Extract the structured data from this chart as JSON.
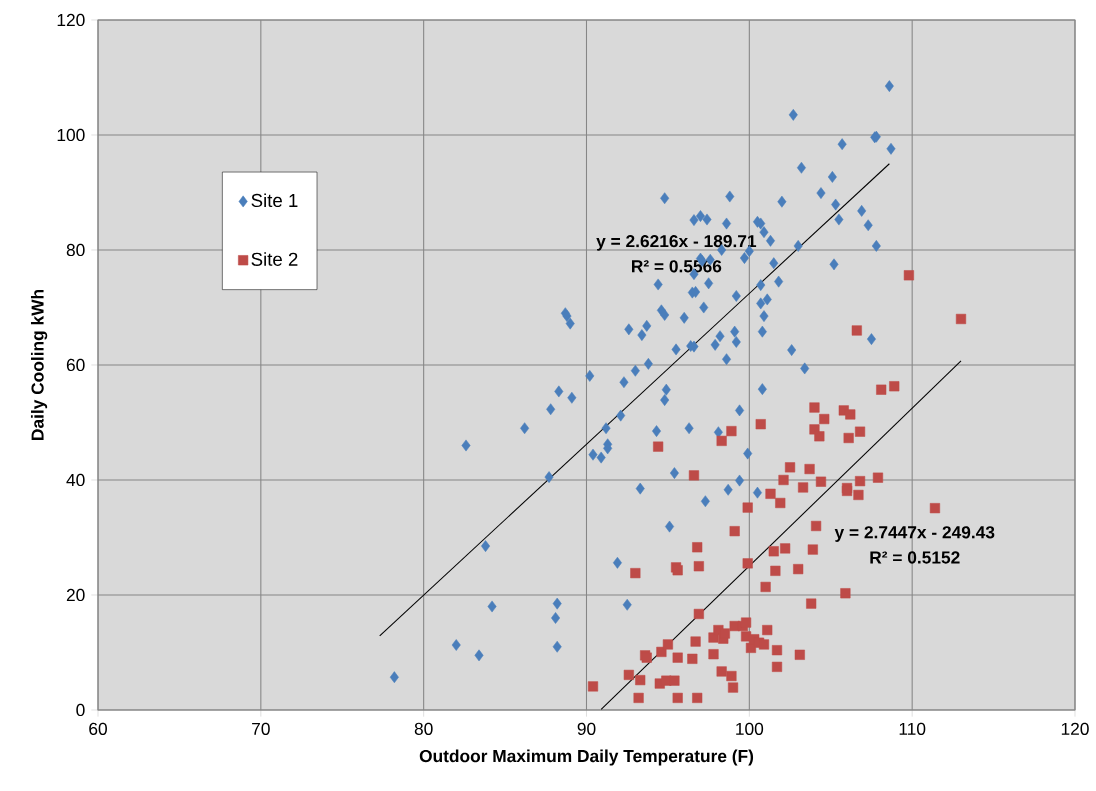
{
  "chart_data": {
    "type": "scatter",
    "xlabel": "Outdoor Maximum Daily Temperature (F)",
    "ylabel": "Daily Cooling kWh",
    "xlim": [
      60,
      120
    ],
    "ylim": [
      0,
      120
    ],
    "xticks": [
      60,
      70,
      80,
      90,
      100,
      110,
      120
    ],
    "yticks": [
      0,
      20,
      40,
      60,
      80,
      100,
      120
    ],
    "grid": true,
    "legend": "left",
    "series": [
      {
        "name": "Site 1",
        "color": "#4a7ebb",
        "marker": "diamond",
        "x": [
          78.2,
          82.0,
          83.4,
          82.6,
          83.8,
          84.2,
          86.2,
          87.7,
          87.8,
          88.3,
          88.2,
          88.1,
          88.2,
          88.7,
          88.8,
          89.0,
          89.1,
          90.2,
          90.4,
          90.9,
          91.3,
          91.3,
          91.2,
          91.9,
          92.1,
          92.3,
          92.5,
          92.6,
          93.0,
          93.3,
          93.4,
          93.7,
          93.8,
          94.3,
          94.4,
          94.6,
          94.8,
          94.8,
          94.8,
          94.9,
          95.1,
          95.4,
          95.5,
          96.0,
          96.3,
          96.4,
          96.5,
          96.6,
          96.6,
          96.7,
          96.6,
          97.0,
          97.0,
          97.1,
          97.2,
          97.3,
          97.4,
          97.5,
          97.6,
          97.9,
          98.1,
          98.2,
          98.3,
          98.6,
          98.7,
          98.6,
          98.8,
          99.1,
          99.2,
          99.2,
          99.4,
          99.4,
          99.7,
          99.9,
          100.0,
          100.5,
          100.5,
          100.7,
          100.7,
          100.7,
          100.8,
          100.9,
          100.8,
          100.9,
          101.1,
          101.3,
          101.5,
          101.8,
          102.0,
          102.6,
          102.7,
          103.0,
          103.2,
          103.4,
          104.4,
          105.1,
          105.2,
          105.3,
          105.5,
          105.7,
          106.9,
          107.3,
          107.5,
          107.7,
          107.8,
          107.8,
          108.6,
          108.7
        ],
        "values": [
          5.7,
          11.3,
          9.5,
          46,
          28.5,
          18,
          49,
          40.5,
          52.3,
          55.4,
          18.5,
          16,
          11,
          69,
          68.5,
          67.2,
          54.3,
          58.1,
          44.4,
          43.9,
          46.2,
          45.5,
          49,
          25.6,
          51.2,
          57,
          18.3,
          66.2,
          59,
          38.5,
          65.2,
          66.8,
          60.2,
          48.5,
          74,
          69.5,
          68.7,
          89,
          53.9,
          55.7,
          31.9,
          41.2,
          62.7,
          68.2,
          49,
          63.3,
          72.6,
          63.2,
          75.8,
          72.7,
          85.2,
          78.5,
          85.9,
          78.1,
          70,
          36.3,
          85.3,
          74.2,
          78.3,
          63.5,
          48.3,
          65,
          80,
          61,
          38.3,
          84.6,
          89.3,
          65.8,
          64,
          72,
          52.1,
          39.9,
          78.6,
          44.6,
          79.8,
          37.8,
          84.9,
          73.9,
          70.7,
          84.6,
          55.8,
          68.5,
          65.8,
          83.1,
          71.4,
          81.6,
          77.7,
          74.5,
          88.4,
          62.6,
          103.5,
          80.7,
          94.3,
          59.4,
          89.9,
          92.7,
          77.5,
          87.9,
          85.3,
          98.4,
          86.8,
          84.3,
          64.5,
          99.6,
          99.7,
          80.7,
          108.5,
          97.6
        ]
      },
      {
        "name": "Site 2",
        "color": "#be4b48",
        "marker": "square",
        "x": [
          90.4,
          92.6,
          93.0,
          93.2,
          93.3,
          93.6,
          93.7,
          94.4,
          94.5,
          94.6,
          94.9,
          95.0,
          95.4,
          95.5,
          95.6,
          95.6,
          95.6,
          96.5,
          96.6,
          96.7,
          96.8,
          96.8,
          96.9,
          96.9,
          97.8,
          97.8,
          98.1,
          98.3,
          98.3,
          98.4,
          98.5,
          98.9,
          98.9,
          99.0,
          99.1,
          99.1,
          99.6,
          99.8,
          99.8,
          99.9,
          99.9,
          100.1,
          100.3,
          100.6,
          100.7,
          100.9,
          101.0,
          101.1,
          101.3,
          101.5,
          101.6,
          101.7,
          101.7,
          101.9,
          102.1,
          102.2,
          102.5,
          103.0,
          103.1,
          103.3,
          103.7,
          103.8,
          103.9,
          104.0,
          104.0,
          104.1,
          104.3,
          104.4,
          104.6,
          105.8,
          105.9,
          106.0,
          106.0,
          106.1,
          106.2,
          106.6,
          106.7,
          106.8,
          106.8,
          107.9,
          108.1,
          108.9,
          109.8,
          111.4,
          113.0
        ],
        "values": [
          4.1,
          6.1,
          23.8,
          2.1,
          5.2,
          9.5,
          9.1,
          45.8,
          4.6,
          10.1,
          5.1,
          11.4,
          5.1,
          24.8,
          9.1,
          24.3,
          2.1,
          8.9,
          40.8,
          11.9,
          28.3,
          2.1,
          25,
          16.7,
          12.6,
          9.7,
          13.9,
          6.7,
          46.8,
          12.4,
          13.3,
          5.9,
          48.5,
          3.9,
          31.1,
          14.6,
          14.6,
          15.2,
          12.8,
          35.2,
          25.5,
          10.8,
          12.3,
          11.7,
          49.7,
          11.4,
          21.4,
          13.9,
          37.6,
          27.6,
          24.2,
          10.4,
          7.5,
          36,
          40,
          28.1,
          42.2,
          24.5,
          9.6,
          38.7,
          41.9,
          18.5,
          27.9,
          52.6,
          48.8,
          32,
          47.6,
          39.7,
          50.6,
          52.1,
          20.3,
          38.6,
          38.1,
          47.3,
          51.4,
          66,
          37.4,
          48.4,
          39.8,
          40.4,
          55.7,
          56.3,
          75.6,
          35.1,
          68
        ]
      },
      {
        "type": "line",
        "color": "#000000",
        "marker": "none",
        "line_style": "solid",
        "x": [
          77.3,
          108.6
        ],
        "values": [
          12.9,
          95.0
        ]
      },
      {
        "type": "line",
        "color": "#000000",
        "marker": "none",
        "line_style": "solid",
        "x": [
          90.9,
          113.0
        ],
        "values": [
          0.1,
          60.7
        ]
      }
    ],
    "annotations": [
      "y = 2.6216x - 189.71",
      "R² = 0.5566",
      "y = 2.7447x - 249.43",
      "R² = 0.5152"
    ]
  }
}
